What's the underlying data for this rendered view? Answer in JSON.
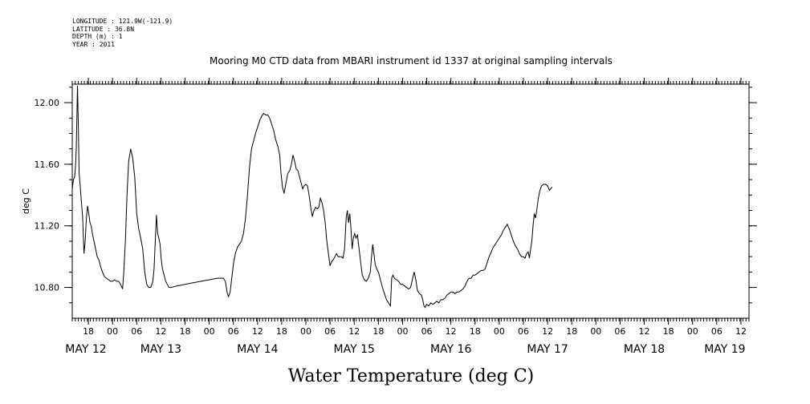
{
  "metadata": {
    "longitude": "LONGITUDE : 121.9W(-121.9)",
    "latitude": "LATITUDE : 36.8N",
    "depth": "DEPTH (m) : 1",
    "year": "YEAR : 2011"
  },
  "chart_data": {
    "type": "line",
    "title": "Mooring M0 CTD data from MBARI instrument id 1337 at original sampling intervals",
    "bottom_title": "Water Temperature (deg C)",
    "ylabel": "deg C",
    "xlabel": "",
    "x_units": "hours since 2011-05-12 00:00",
    "xlim": [
      14,
      182
    ],
    "ylim": [
      10.6,
      12.12
    ],
    "y_ticks": [
      "10.80",
      "11.20",
      "11.60",
      "12.00"
    ],
    "y_tick_values": [
      10.8,
      11.2,
      11.6,
      12.0
    ],
    "hour_ticks": [
      {
        "label": "18",
        "t": 18
      },
      {
        "label": "00",
        "t": 24
      },
      {
        "label": "06",
        "t": 30
      },
      {
        "label": "12",
        "t": 36
      },
      {
        "label": "18",
        "t": 42
      },
      {
        "label": "00",
        "t": 48
      },
      {
        "label": "06",
        "t": 54
      },
      {
        "label": "12",
        "t": 60
      },
      {
        "label": "18",
        "t": 66
      },
      {
        "label": "00",
        "t": 72
      },
      {
        "label": "06",
        "t": 78
      },
      {
        "label": "12",
        "t": 84
      },
      {
        "label": "18",
        "t": 90
      },
      {
        "label": "00",
        "t": 96
      },
      {
        "label": "06",
        "t": 102
      },
      {
        "label": "12",
        "t": 108
      },
      {
        "label": "18",
        "t": 114
      },
      {
        "label": "00",
        "t": 120
      },
      {
        "label": "06",
        "t": 126
      },
      {
        "label": "12",
        "t": 132
      },
      {
        "label": "18",
        "t": 138
      },
      {
        "label": "00",
        "t": 144
      },
      {
        "label": "06",
        "t": 150
      },
      {
        "label": "12",
        "t": 156
      },
      {
        "label": "18",
        "t": 162
      },
      {
        "label": "00",
        "t": 168
      },
      {
        "label": "06",
        "t": 174
      },
      {
        "label": "12",
        "t": 180
      }
    ],
    "day_labels": [
      {
        "label": "MAY 12",
        "t": 14
      },
      {
        "label": "MAY 13",
        "t": 36
      },
      {
        "label": "MAY 14",
        "t": 60
      },
      {
        "label": "MAY 15",
        "t": 84
      },
      {
        "label": "MAY 16",
        "t": 108
      },
      {
        "label": "MAY 17",
        "t": 132
      },
      {
        "label": "MAY 18",
        "t": 156
      },
      {
        "label": "MAY 19",
        "t": 176
      }
    ],
    "series": [
      {
        "color": "#000000",
        "points": [
          [
            14.0,
            11.44
          ],
          [
            14.3,
            11.5
          ],
          [
            14.6,
            11.52
          ],
          [
            14.8,
            11.58
          ],
          [
            15.0,
            11.7
          ],
          [
            15.2,
            11.96
          ],
          [
            15.3,
            12.11
          ],
          [
            15.5,
            11.88
          ],
          [
            15.7,
            11.55
          ],
          [
            16.0,
            11.45
          ],
          [
            16.3,
            11.35
          ],
          [
            16.6,
            11.25
          ],
          [
            16.9,
            11.02
          ],
          [
            17.2,
            11.1
          ],
          [
            17.5,
            11.25
          ],
          [
            17.8,
            11.33
          ],
          [
            18.1,
            11.28
          ],
          [
            18.4,
            11.22
          ],
          [
            18.7,
            11.2
          ],
          [
            19.0,
            11.15
          ],
          [
            19.4,
            11.1
          ],
          [
            19.8,
            11.05
          ],
          [
            20.2,
            11.0
          ],
          [
            20.6,
            10.98
          ],
          [
            21.0,
            10.94
          ],
          [
            21.5,
            10.9
          ],
          [
            22.0,
            10.87
          ],
          [
            22.5,
            10.86
          ],
          [
            23.0,
            10.85
          ],
          [
            23.5,
            10.84
          ],
          [
            24.0,
            10.84
          ],
          [
            24.5,
            10.85
          ],
          [
            25.0,
            10.84
          ],
          [
            25.5,
            10.84
          ],
          [
            26.0,
            10.82
          ],
          [
            26.5,
            10.79
          ],
          [
            26.8,
            10.9
          ],
          [
            27.2,
            11.1
          ],
          [
            27.6,
            11.4
          ],
          [
            28.0,
            11.62
          ],
          [
            28.5,
            11.7
          ],
          [
            29.0,
            11.64
          ],
          [
            29.5,
            11.52
          ],
          [
            30.0,
            11.28
          ],
          [
            30.5,
            11.18
          ],
          [
            31.0,
            11.12
          ],
          [
            31.5,
            11.05
          ],
          [
            32.0,
            10.9
          ],
          [
            32.5,
            10.82
          ],
          [
            33.0,
            10.8
          ],
          [
            33.5,
            10.8
          ],
          [
            34.0,
            10.84
          ],
          [
            34.3,
            10.92
          ],
          [
            34.6,
            11.1
          ],
          [
            34.9,
            11.27
          ],
          [
            35.2,
            11.15
          ],
          [
            35.5,
            11.12
          ],
          [
            35.8,
            11.08
          ],
          [
            36.1,
            10.98
          ],
          [
            36.4,
            10.92
          ],
          [
            36.8,
            10.88
          ],
          [
            37.2,
            10.84
          ],
          [
            37.6,
            10.82
          ],
          [
            38.0,
            10.8
          ],
          [
            38.5,
            10.8
          ],
          [
            40.0,
            10.81
          ],
          [
            42.0,
            10.82
          ],
          [
            44.0,
            10.83
          ],
          [
            46.0,
            10.84
          ],
          [
            48.0,
            10.85
          ],
          [
            50.0,
            10.86
          ],
          [
            51.5,
            10.86
          ],
          [
            52.0,
            10.84
          ],
          [
            52.5,
            10.76
          ],
          [
            52.8,
            10.74
          ],
          [
            53.2,
            10.77
          ],
          [
            53.6,
            10.86
          ],
          [
            54.0,
            10.95
          ],
          [
            54.5,
            11.02
          ],
          [
            55.0,
            11.06
          ],
          [
            55.5,
            11.08
          ],
          [
            56.0,
            11.1
          ],
          [
            56.5,
            11.15
          ],
          [
            57.0,
            11.25
          ],
          [
            57.5,
            11.4
          ],
          [
            58.0,
            11.58
          ],
          [
            58.5,
            11.7
          ],
          [
            59.0,
            11.75
          ],
          [
            59.5,
            11.8
          ],
          [
            60.0,
            11.84
          ],
          [
            60.5,
            11.88
          ],
          [
            61.0,
            11.91
          ],
          [
            61.5,
            11.93
          ],
          [
            62.0,
            11.92
          ],
          [
            62.5,
            11.92
          ],
          [
            63.0,
            11.9
          ],
          [
            63.5,
            11.86
          ],
          [
            64.0,
            11.82
          ],
          [
            64.5,
            11.76
          ],
          [
            65.0,
            11.72
          ],
          [
            65.5,
            11.66
          ],
          [
            65.8,
            11.55
          ],
          [
            66.2,
            11.45
          ],
          [
            66.6,
            11.41
          ],
          [
            67.0,
            11.47
          ],
          [
            67.5,
            11.54
          ],
          [
            68.0,
            11.56
          ],
          [
            68.4,
            11.6
          ],
          [
            68.8,
            11.66
          ],
          [
            69.2,
            11.62
          ],
          [
            69.6,
            11.57
          ],
          [
            70.0,
            11.56
          ],
          [
            70.4,
            11.52
          ],
          [
            70.8,
            11.48
          ],
          [
            71.2,
            11.44
          ],
          [
            71.6,
            11.46
          ],
          [
            72.0,
            11.47
          ],
          [
            72.4,
            11.46
          ],
          [
            72.8,
            11.4
          ],
          [
            73.2,
            11.32
          ],
          [
            73.6,
            11.26
          ],
          [
            74.0,
            11.3
          ],
          [
            74.4,
            11.32
          ],
          [
            74.8,
            11.31
          ],
          [
            75.2,
            11.32
          ],
          [
            75.6,
            11.38
          ],
          [
            76.0,
            11.35
          ],
          [
            76.4,
            11.3
          ],
          [
            76.8,
            11.22
          ],
          [
            77.2,
            11.1
          ],
          [
            77.6,
            11.02
          ],
          [
            78.0,
            10.94
          ],
          [
            78.4,
            10.97
          ],
          [
            78.8,
            10.98
          ],
          [
            79.2,
            11.0
          ],
          [
            79.6,
            11.02
          ],
          [
            80.0,
            11.0
          ],
          [
            80.4,
            11.0
          ],
          [
            80.8,
            11.0
          ],
          [
            81.2,
            10.99
          ],
          [
            81.6,
            11.05
          ],
          [
            82.0,
            11.25
          ],
          [
            82.3,
            11.3
          ],
          [
            82.6,
            11.22
          ],
          [
            82.9,
            11.28
          ],
          [
            83.2,
            11.18
          ],
          [
            83.5,
            11.05
          ],
          [
            83.8,
            11.12
          ],
          [
            84.1,
            11.15
          ],
          [
            84.4,
            11.12
          ],
          [
            84.8,
            11.14
          ],
          [
            85.2,
            11.05
          ],
          [
            85.6,
            10.96
          ],
          [
            86.0,
            10.88
          ],
          [
            86.5,
            10.85
          ],
          [
            87.0,
            10.84
          ],
          [
            87.5,
            10.86
          ],
          [
            88.0,
            10.9
          ],
          [
            88.3,
            11.0
          ],
          [
            88.6,
            11.08
          ],
          [
            88.9,
            11.02
          ],
          [
            89.2,
            10.95
          ],
          [
            89.6,
            10.92
          ],
          [
            90.0,
            10.9
          ],
          [
            90.5,
            10.85
          ],
          [
            91.0,
            10.8
          ],
          [
            91.5,
            10.76
          ],
          [
            92.0,
            10.72
          ],
          [
            92.5,
            10.7
          ],
          [
            93.0,
            10.68
          ],
          [
            93.3,
            10.86
          ],
          [
            93.6,
            10.88
          ],
          [
            94.0,
            10.86
          ],
          [
            94.5,
            10.85
          ],
          [
            95.0,
            10.84
          ],
          [
            95.5,
            10.82
          ],
          [
            96.0,
            10.82
          ],
          [
            96.5,
            10.81
          ],
          [
            97.0,
            10.8
          ],
          [
            97.5,
            10.79
          ],
          [
            98.0,
            10.8
          ],
          [
            98.5,
            10.86
          ],
          [
            98.9,
            10.9
          ],
          [
            99.3,
            10.85
          ],
          [
            99.7,
            10.78
          ],
          [
            100.2,
            10.76
          ],
          [
            100.7,
            10.75
          ],
          [
            101.0,
            10.72
          ],
          [
            101.3,
            10.68
          ],
          [
            101.6,
            10.67
          ],
          [
            102.0,
            10.69
          ],
          [
            102.5,
            10.68
          ],
          [
            103.0,
            10.7
          ],
          [
            103.5,
            10.69
          ],
          [
            104.0,
            10.7
          ],
          [
            104.5,
            10.71
          ],
          [
            105.0,
            10.7
          ],
          [
            105.5,
            10.72
          ],
          [
            106.0,
            10.72
          ],
          [
            106.5,
            10.73
          ],
          [
            107.0,
            10.75
          ],
          [
            107.5,
            10.76
          ],
          [
            108.0,
            10.77
          ],
          [
            108.5,
            10.77
          ],
          [
            109.0,
            10.76
          ],
          [
            109.5,
            10.77
          ],
          [
            110.0,
            10.77
          ],
          [
            110.5,
            10.78
          ],
          [
            111.0,
            10.79
          ],
          [
            111.5,
            10.81
          ],
          [
            112.0,
            10.84
          ],
          [
            112.5,
            10.86
          ],
          [
            113.0,
            10.86
          ],
          [
            113.5,
            10.88
          ],
          [
            114.0,
            10.88
          ],
          [
            114.5,
            10.89
          ],
          [
            115.0,
            10.9
          ],
          [
            115.5,
            10.91
          ],
          [
            116.0,
            10.91
          ],
          [
            116.5,
            10.92
          ],
          [
            117.0,
            10.96
          ],
          [
            117.5,
            11.0
          ],
          [
            118.0,
            11.03
          ],
          [
            118.5,
            11.06
          ],
          [
            119.0,
            11.08
          ],
          [
            119.5,
            11.1
          ],
          [
            120.0,
            11.12
          ],
          [
            120.5,
            11.14
          ],
          [
            121.0,
            11.17
          ],
          [
            121.5,
            11.19
          ],
          [
            122.0,
            11.21
          ],
          [
            122.5,
            11.18
          ],
          [
            123.0,
            11.14
          ],
          [
            123.5,
            11.1
          ],
          [
            124.0,
            11.07
          ],
          [
            124.5,
            11.05
          ],
          [
            125.0,
            11.02
          ],
          [
            125.5,
            11.0
          ],
          [
            126.0,
            11.0
          ],
          [
            126.4,
            10.99
          ],
          [
            126.8,
            11.02
          ],
          [
            127.2,
            11.03
          ],
          [
            127.5,
            10.99
          ],
          [
            127.8,
            11.05
          ],
          [
            128.1,
            11.1
          ],
          [
            128.4,
            11.2
          ],
          [
            128.7,
            11.28
          ],
          [
            129.0,
            11.25
          ],
          [
            129.3,
            11.3
          ],
          [
            129.7,
            11.38
          ],
          [
            130.1,
            11.43
          ],
          [
            130.5,
            11.46
          ],
          [
            131.0,
            11.47
          ],
          [
            131.5,
            11.47
          ],
          [
            132.0,
            11.46
          ],
          [
            132.5,
            11.43
          ],
          [
            133.0,
            11.45
          ],
          [
            133.2,
            11.45
          ]
        ]
      }
    ]
  }
}
